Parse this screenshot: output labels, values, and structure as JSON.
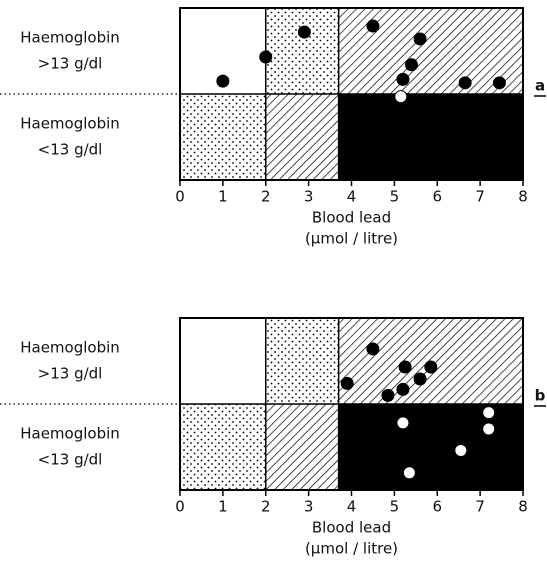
{
  "chart_data": [
    {
      "type": "scatter",
      "panel_label": "a",
      "row_labels": [
        [
          "Haemoglobin",
          ">13 g/dl"
        ],
        [
          "Haemoglobin",
          "<13 g/dl"
        ]
      ],
      "xlabel": [
        "Blood lead",
        "(µmol / litre)"
      ],
      "xlim": [
        0,
        8
      ],
      "xticks": [
        0,
        1,
        2,
        3,
        4,
        5,
        6,
        7,
        8
      ],
      "ylim": [
        0,
        2
      ],
      "thresholds": [
        2,
        3.7
      ],
      "series": [
        {
          "color": "#000000",
          "x": [
            1.0,
            2.0,
            2.9,
            4.5,
            5.6,
            5.4,
            5.2,
            6.65,
            7.45
          ],
          "values": [
            1.15,
            1.43,
            1.72,
            1.79,
            1.64,
            1.34,
            1.17,
            1.13,
            1.13
          ]
        },
        {
          "color": "#ffffff",
          "x": [
            5.15
          ],
          "values": [
            0.97
          ]
        }
      ]
    },
    {
      "type": "scatter",
      "panel_label": "b",
      "row_labels": [
        [
          "Haemoglobin",
          ">13 g/dl"
        ],
        [
          "Haemoglobin",
          "<13 g/dl"
        ]
      ],
      "xlabel": [
        "Blood lead",
        "(µmol / litre)"
      ],
      "xlim": [
        0,
        8
      ],
      "xticks": [
        0,
        1,
        2,
        3,
        4,
        5,
        6,
        7,
        8
      ],
      "ylim": [
        0,
        2
      ],
      "thresholds": [
        2,
        3.7
      ],
      "series": [
        {
          "color": "#000000",
          "x": [
            3.9,
            4.5,
            4.85,
            5.25,
            5.2,
            5.6,
            5.85
          ],
          "values": [
            1.24,
            1.64,
            1.1,
            1.43,
            1.17,
            1.29,
            1.43
          ]
        },
        {
          "color": "#ffffff",
          "x": [
            5.2,
            7.2,
            7.2,
            6.55,
            5.35
          ],
          "values": [
            0.78,
            0.9,
            0.71,
            0.46,
            0.2
          ]
        }
      ]
    }
  ]
}
